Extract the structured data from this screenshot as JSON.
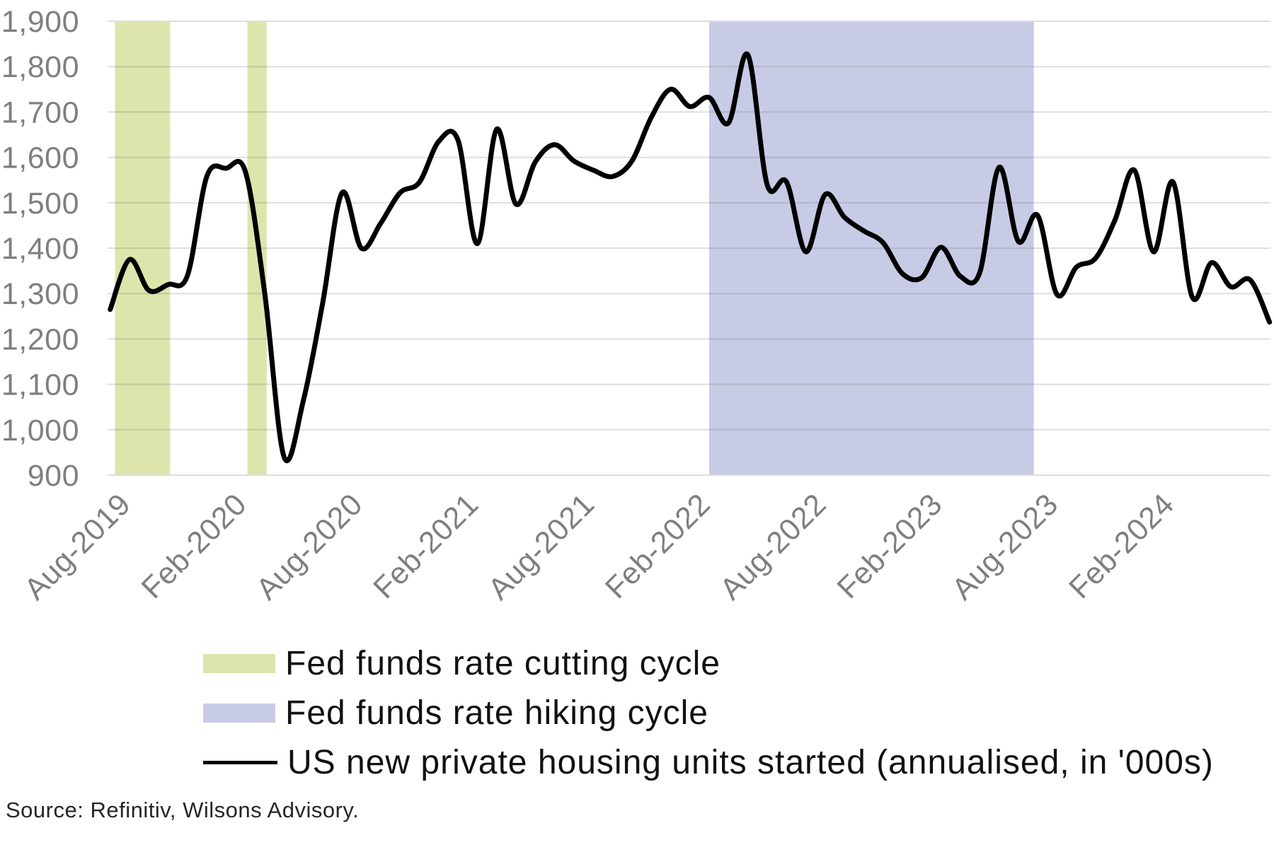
{
  "source": {
    "text": "Source: Refinitiv, Wilsons Advisory."
  },
  "legend": {
    "position": "bottom-left",
    "items": [
      {
        "label": "Fed funds rate cutting cycle",
        "swatch": "band",
        "color": "#dde4ac"
      },
      {
        "label": "Fed funds rate hiking cycle",
        "swatch": "band",
        "color": "#c8cbe6"
      },
      {
        "label": "US new private housing units started (annualised, in '000s)",
        "swatch": "line",
        "color": "#000000"
      }
    ]
  },
  "style": {
    "band_green": "#dde4ac",
    "band_blue": "#c8cbe6",
    "grid_color": "#d9d9d9",
    "axis_text_color": "#7f7f7f",
    "line_color": "#000000",
    "background": "#ffffff"
  },
  "chart_data": {
    "type": "line",
    "title": "",
    "xlabel": "",
    "ylabel": "",
    "ylim": [
      900,
      1900
    ],
    "y_tick_step": 100,
    "grid": "horizontal",
    "legend_position": "bottom-left",
    "y_ticks": [
      "900",
      "1,000",
      "1,100",
      "1,200",
      "1,300",
      "1,400",
      "1,500",
      "1,600",
      "1,700",
      "1,800",
      "1,900"
    ],
    "x_ticks": [
      {
        "label": "Aug-2019",
        "month_index": 1
      },
      {
        "label": "Feb-2020",
        "month_index": 7
      },
      {
        "label": "Aug-2020",
        "month_index": 13
      },
      {
        "label": "Feb-2021",
        "month_index": 19
      },
      {
        "label": "Aug-2021",
        "month_index": 25
      },
      {
        "label": "Feb-2022",
        "month_index": 31
      },
      {
        "label": "Aug-2022",
        "month_index": 37
      },
      {
        "label": "Feb-2023",
        "month_index": 43
      },
      {
        "label": "Aug-2023",
        "month_index": 49
      },
      {
        "label": "Feb-2024",
        "month_index": 55
      }
    ],
    "x_range": {
      "first_month": "Jul-2019",
      "last_month": "Jul-2024",
      "months_total": 61
    },
    "series": [
      {
        "name": "US new private housing units started (annualised, in '000s)",
        "color": "#000000",
        "smooth": true,
        "monthly_values_000s": [
          1265,
          1375,
          1307,
          1320,
          1340,
          1558,
          1576,
          1568,
          1300,
          940,
          1065,
          1280,
          1522,
          1400,
          1455,
          1522,
          1545,
          1635,
          1638,
          1410,
          1662,
          1497,
          1590,
          1628,
          1592,
          1572,
          1558,
          1592,
          1688,
          1750,
          1712,
          1732,
          1676,
          1826,
          1540,
          1546,
          1392,
          1518,
          1468,
          1438,
          1412,
          1344,
          1335,
          1402,
          1338,
          1346,
          1578,
          1415,
          1472,
          1298,
          1358,
          1378,
          1462,
          1572,
          1392,
          1546,
          1292,
          1368,
          1315,
          1330,
          1237
        ]
      }
    ],
    "shaded_bands": [
      {
        "name": "Fed funds rate cutting cycle",
        "color": "#dde4ac",
        "from": "Aug-2019",
        "to": "Oct-2019",
        "from_index": 0.25,
        "to_index": 3.1
      },
      {
        "name": "Fed funds rate cutting cycle",
        "color": "#dde4ac",
        "from": "Feb-2020",
        "to": "Mar-2020",
        "from_index": 7.1,
        "to_index": 8.1
      },
      {
        "name": "Fed funds rate hiking cycle",
        "color": "#c8cbe6",
        "from": "Feb-2022",
        "to": "Jul-2023",
        "from_index": 31,
        "to_index": 47.8
      }
    ]
  }
}
